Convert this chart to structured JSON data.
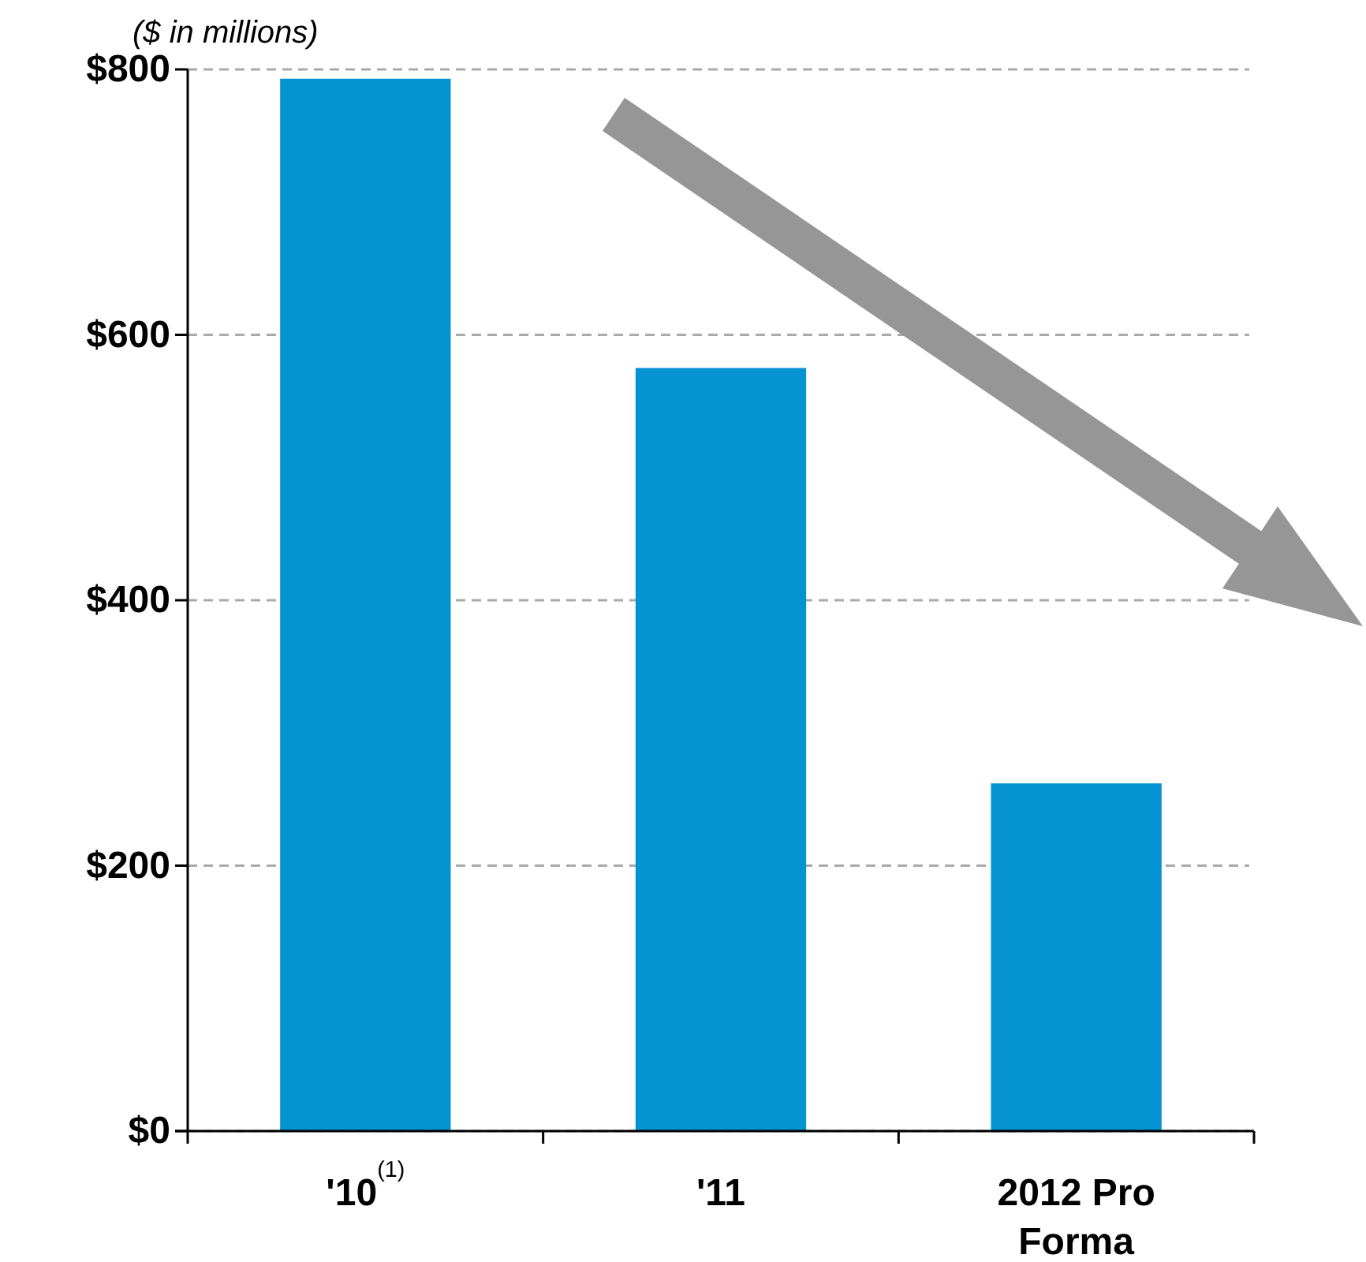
{
  "chart_data": {
    "type": "bar",
    "ylabel": "($ in millions)",
    "categories": [
      "'10$^{(1)}$",
      "'11",
      "2012 Pro Forma"
    ],
    "values": [
      793,
      575,
      262
    ],
    "color": "#0593d1",
    "ylim": [
      0,
      800
    ],
    "yticks": [
      {
        "value": 0,
        "label": "$0"
      },
      {
        "value": 200,
        "label": "$200"
      },
      {
        "value": 400,
        "label": "$400"
      },
      {
        "value": 600,
        "label": "$600"
      },
      {
        "value": 800,
        "label": "$800"
      }
    ],
    "grid": "y"
  }
}
